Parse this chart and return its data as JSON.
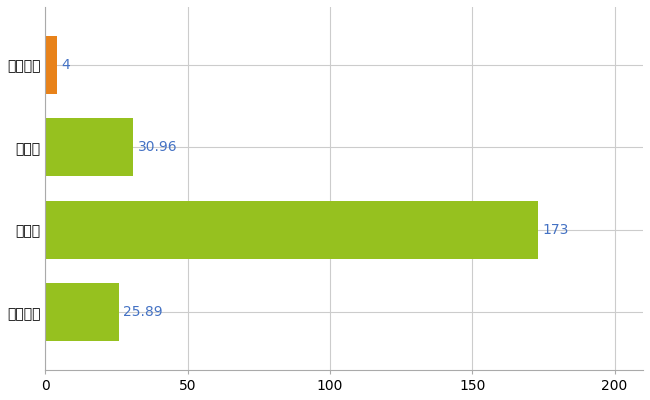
{
  "categories": [
    "小鹿野町",
    "県平均",
    "県最大",
    "全国平均"
  ],
  "values": [
    4,
    30.96,
    173,
    25.89
  ],
  "bar_colors": [
    "#E8821A",
    "#96C11F",
    "#96C11F",
    "#96C11F"
  ],
  "label_color": "#4472C4",
  "value_labels": [
    "4",
    "30.96",
    "173",
    "25.89"
  ],
  "xlim": [
    0,
    210
  ],
  "xticks": [
    0,
    50,
    100,
    150,
    200
  ],
  "grid_color": "#CCCCCC",
  "background_color": "#FFFFFF",
  "bar_height": 0.7,
  "label_fontsize": 11,
  "tick_fontsize": 10,
  "value_label_fontsize": 10
}
